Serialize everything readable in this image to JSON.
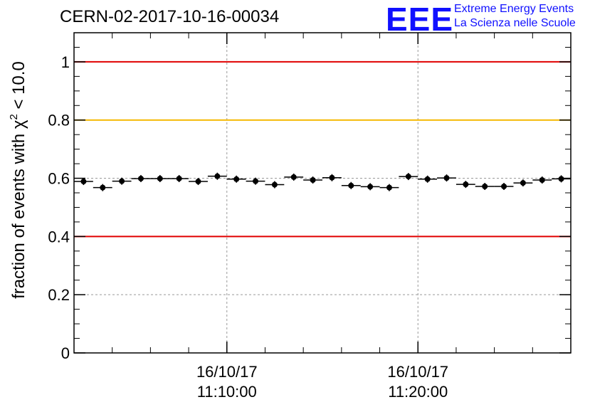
{
  "header": {
    "run_title": "CERN-02-2017-10-16-00034"
  },
  "logo": {
    "mark": "EEE",
    "line1": "Extreme Energy Events",
    "line2": "La Scienza nelle Scuole",
    "color": "#1010ff"
  },
  "chart_data": {
    "type": "scatter",
    "title": "",
    "xlabel": "",
    "ylabel": "fraction of events with χ² < 10.0",
    "ylabel_parts": {
      "before": "fraction of events with ",
      "symbol": "χ",
      "sup": "2",
      "after": " < 10.0"
    },
    "ylim": [
      0,
      1.1
    ],
    "yticks": [
      {
        "value": 0,
        "label": "0"
      },
      {
        "value": 0.2,
        "label": "0.2"
      },
      {
        "value": 0.4,
        "label": "0.4"
      },
      {
        "value": 0.6,
        "label": "0.6"
      },
      {
        "value": 0.8,
        "label": "0.8"
      },
      {
        "value": 1,
        "label": "1"
      }
    ],
    "xlim_minutes": [
      0,
      26
    ],
    "xticks": [
      {
        "minute": 8,
        "date": "16/10/17",
        "time": "11:10:00"
      },
      {
        "minute": 18,
        "date": "16/10/17",
        "time": "11:20:00"
      }
    ],
    "grid": true,
    "reference_lines": [
      {
        "value": 1.0,
        "color": "#e00000"
      },
      {
        "value": 0.8,
        "color": "#f5b800"
      },
      {
        "value": 0.4,
        "color": "#e00000"
      }
    ],
    "series": [
      {
        "bin_width_minutes": 1,
        "x_minutes": [
          0.5,
          1.5,
          2.5,
          3.5,
          4.5,
          5.5,
          6.5,
          7.5,
          8.5,
          9.5,
          10.5,
          11.5,
          12.5,
          13.5,
          14.5,
          15.5,
          16.5,
          17.5,
          18.5,
          19.5,
          20.5,
          21.5,
          22.5,
          23.5,
          24.5,
          25.5
        ],
        "values": [
          0.589,
          0.568,
          0.59,
          0.599,
          0.599,
          0.599,
          0.589,
          0.607,
          0.597,
          0.59,
          0.578,
          0.604,
          0.594,
          0.602,
          0.575,
          0.571,
          0.568,
          0.606,
          0.597,
          0.601,
          0.579,
          0.572,
          0.572,
          0.584,
          0.594,
          0.598
        ]
      }
    ]
  }
}
